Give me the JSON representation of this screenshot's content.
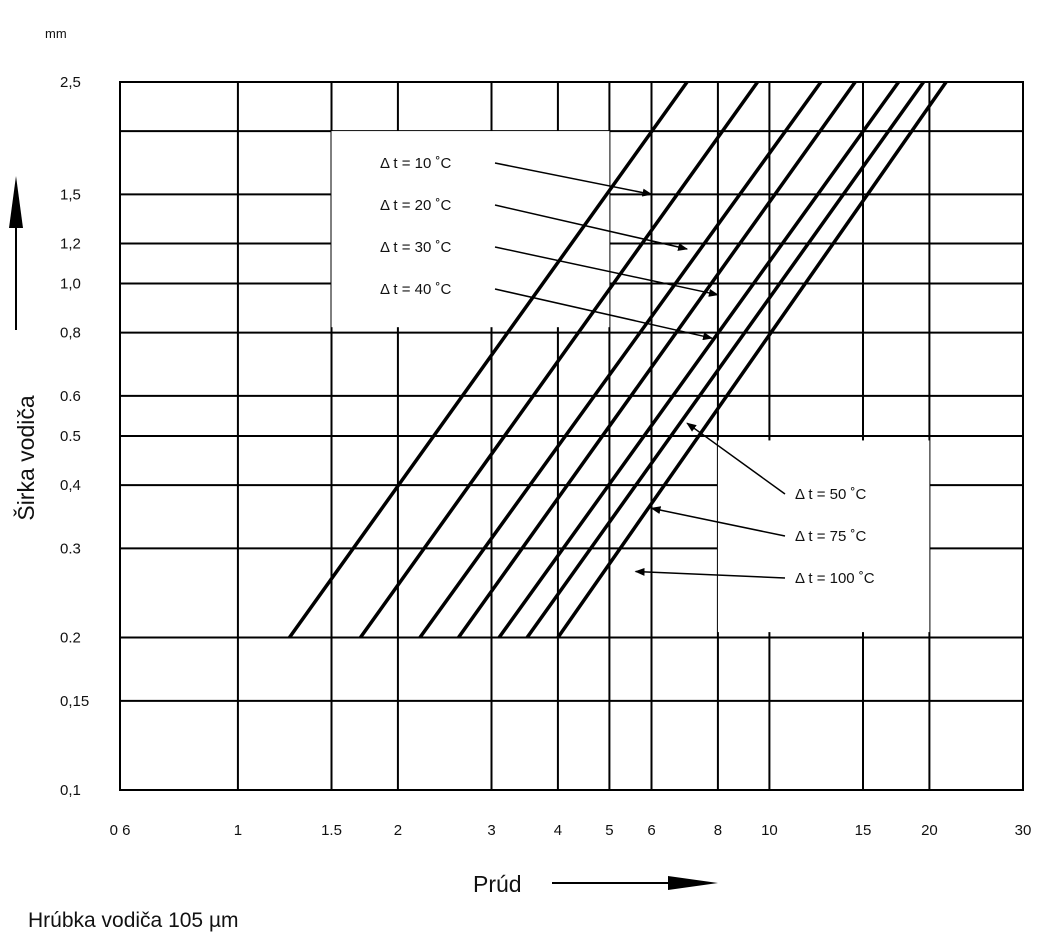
{
  "chart_data": {
    "type": "line",
    "xscale": "log",
    "yscale": "log",
    "xlim": [
      0.6,
      30
    ],
    "ylim": [
      0.1,
      2.5
    ],
    "grid": true,
    "x_ticks": [
      "0 6",
      "1",
      "1.5",
      "2",
      "3",
      "4",
      "5",
      "6",
      "8",
      "10",
      "15",
      "20",
      "30"
    ],
    "y_ticks": [
      "2,5",
      "1,5",
      "1,2",
      "1,0",
      "0,8",
      "0.6",
      "0.5",
      "0,4",
      "0.3",
      "0.2",
      "0,15",
      "0,1"
    ],
    "y_unit": "mm",
    "xlabel": "Prúd",
    "ylabel": "Širka vodiča",
    "footer": "Hrúbka vodiča 105 µm",
    "series": [
      {
        "name": "Δ t = 10 ˚C",
        "x": [
          1.25,
          7.0
        ],
        "y": [
          0.2,
          2.5
        ]
      },
      {
        "name": "Δ t = 20 ˚C",
        "x": [
          1.7,
          9.5
        ],
        "y": [
          0.2,
          2.5
        ]
      },
      {
        "name": "Δ t = 30 ˚C",
        "x": [
          2.2,
          12.5
        ],
        "y": [
          0.2,
          2.5
        ]
      },
      {
        "name": "Δ t = 40 ˚C",
        "x": [
          2.6,
          14.5
        ],
        "y": [
          0.2,
          2.5
        ]
      },
      {
        "name": "Δ t = 50 ˚C",
        "x": [
          3.1,
          17.5
        ],
        "y": [
          0.2,
          2.5
        ]
      },
      {
        "name": "Δ t = 75 ˚C",
        "x": [
          3.5,
          19.5
        ],
        "y": [
          0.2,
          2.5
        ]
      },
      {
        "name": "Δ t = 100 ˚C",
        "x": [
          4.0,
          21.5
        ],
        "y": [
          0.2,
          2.5
        ]
      }
    ],
    "annotations": [
      {
        "text": "Δ t = 10 ˚C",
        "target_x": 6.0,
        "target_y": 1.5
      },
      {
        "text": "Δ t = 20 ˚C",
        "target_x": 7.0,
        "target_y": 1.17
      },
      {
        "text": "Δ t = 30 ˚C",
        "target_x": 8.0,
        "target_y": 0.95
      },
      {
        "text": "Δ t = 40 ˚C",
        "target_x": 7.8,
        "target_y": 0.78
      },
      {
        "text": "Δ t = 50 ˚C",
        "target_x": 7.0,
        "target_y": 0.53
      },
      {
        "text": "Δ t = 75 ˚C",
        "target_x": 6.0,
        "target_y": 0.36
      },
      {
        "text": "Δ t = 100 ˚C",
        "target_x": 5.6,
        "target_y": 0.27
      }
    ]
  }
}
